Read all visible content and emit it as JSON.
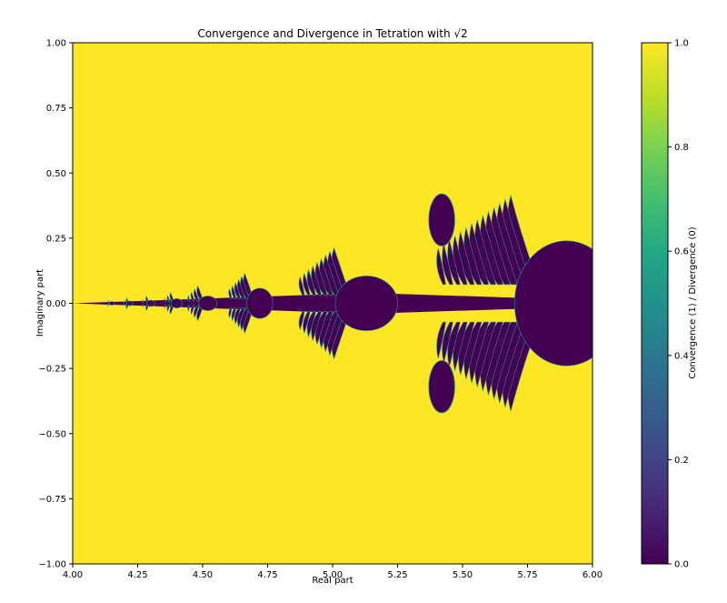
{
  "chart_data": {
    "type": "heatmap",
    "title": "Convergence and Divergence in Tetration with √2",
    "xlabel": "Real part",
    "ylabel": "Imaginary part",
    "xlim": [
      4.0,
      6.0
    ],
    "ylim": [
      -1.0,
      1.0
    ],
    "x_ticks": [
      "4.00",
      "4.25",
      "4.50",
      "4.75",
      "5.00",
      "5.25",
      "5.50",
      "5.75",
      "6.00"
    ],
    "y_ticks": [
      "-1.00",
      "-0.75",
      "-0.50",
      "-0.25",
      "0.00",
      "0.25",
      "0.50",
      "0.75",
      "1.00"
    ],
    "colorbar": {
      "label": "Convergence (1) / Divergence (0)",
      "range": [
        0.0,
        1.0
      ],
      "ticks": [
        "0.0",
        "0.2",
        "0.4",
        "0.6",
        "0.8",
        "1.0"
      ],
      "colormap": "viridis"
    },
    "values_meaning": {
      "converge": 1,
      "diverge": 0
    },
    "regions": {
      "background_value": 1,
      "main_bulbs": [
        {
          "center_re": 5.9,
          "radius_re": 0.2,
          "radius_im": 0.24,
          "value": 0
        },
        {
          "center_re": 5.13,
          "radius_re": 0.12,
          "radius_im": 0.105,
          "value": 0
        },
        {
          "center_re": 4.72,
          "radius_re": 0.05,
          "radius_im": 0.058,
          "value": 0
        },
        {
          "center_re": 4.52,
          "radius_re": 0.035,
          "radius_im": 0.028,
          "value": 0
        },
        {
          "center_re": 4.4,
          "radius_re": 0.022,
          "radius_im": 0.018,
          "value": 0
        },
        {
          "center_re": 4.3,
          "radius_re": 0.016,
          "radius_im": 0.012,
          "value": 0
        },
        {
          "center_re": 4.22,
          "radius_re": 0.012,
          "radius_im": 0.009,
          "value": 0
        },
        {
          "center_re": 4.15,
          "radius_re": 0.01,
          "radius_im": 0.007,
          "value": 0
        }
      ]
    }
  },
  "colors": {
    "converge": "#fde725",
    "diverge": "#440154",
    "edge": "#21918c"
  }
}
